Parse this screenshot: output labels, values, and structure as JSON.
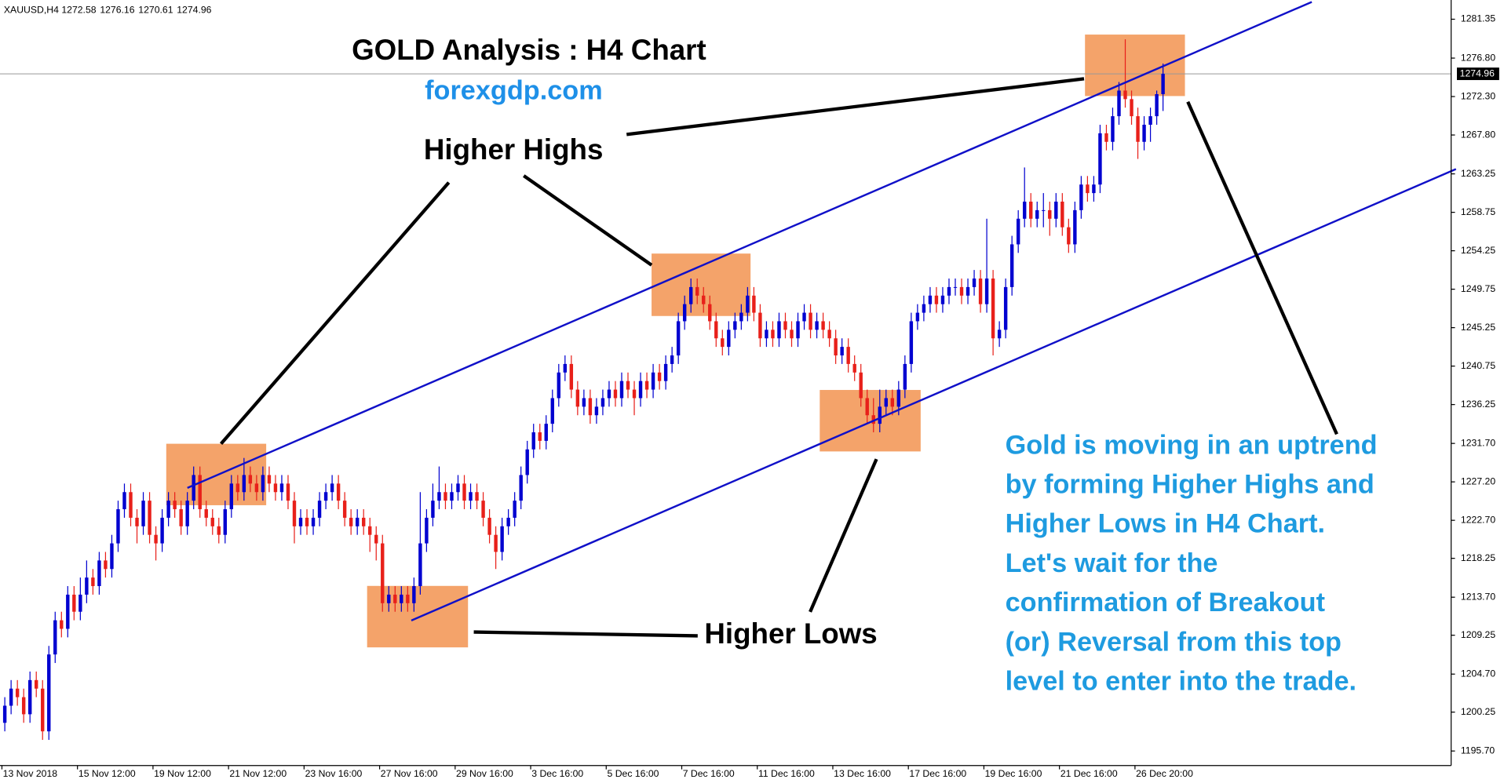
{
  "chart_data": {
    "type": "candlestick",
    "symbol": "XAUUSD,H4",
    "title": "GOLD Analysis : H4 Chart",
    "subtitle": "forexgdp.com",
    "annotations": [
      "Higher Highs",
      "Higher Lows"
    ],
    "note_lines": [
      "Gold is moving in an uptrend",
      "by forming Higher Highs and",
      "Higher Lows in H4 Chart.",
      "Let's wait for the",
      "confirmation of Breakout",
      "(or) Reversal from this top",
      "level to enter into the trade."
    ],
    "up_color": "#0000d0",
    "down_color": "#e8201a",
    "ylim": [
      1194.0,
      1283.6
    ],
    "yticks": [
      1281.35,
      {
        "value": 1276.8,
        "label": "1276.80"
      },
      {
        "value": 1272.3,
        "label": "1272.30"
      },
      {
        "value": 1267.8,
        "label": "1267.80"
      },
      1263.25,
      1258.75,
      1254.25,
      1249.75,
      1245.25,
      1240.75,
      1236.25,
      {
        "value": 1231.7,
        "label": "1231.70"
      },
      {
        "value": 1227.2,
        "label": "1227.20"
      },
      {
        "value": 1222.7,
        "label": "1222.70"
      },
      1218.25,
      {
        "value": 1213.7,
        "label": "1213.70"
      },
      1209.25,
      {
        "value": 1204.7,
        "label": "1204.70"
      },
      1200.25,
      {
        "value": 1195.7,
        "label": "1195.70"
      }
    ],
    "categories": [
      "13 Nov 2018",
      null,
      null,
      null,
      null,
      null,
      null,
      null,
      null,
      null,
      null,
      null,
      "15 Nov 12:00",
      null,
      null,
      null,
      null,
      null,
      null,
      null,
      null,
      null,
      null,
      null,
      "19 Nov 12:00",
      null,
      null,
      null,
      null,
      null,
      null,
      null,
      null,
      null,
      null,
      null,
      "21 Nov 12:00",
      null,
      null,
      null,
      null,
      null,
      null,
      null,
      null,
      null,
      null,
      null,
      "23 Nov 16:00",
      null,
      null,
      null,
      null,
      null,
      null,
      null,
      null,
      null,
      null,
      null,
      "27 Nov 16:00",
      null,
      null,
      null,
      null,
      null,
      null,
      null,
      null,
      null,
      null,
      null,
      "29 Nov 16:00",
      null,
      null,
      null,
      null,
      null,
      null,
      null,
      null,
      null,
      null,
      null,
      "3 Dec 16:00",
      null,
      null,
      null,
      null,
      null,
      null,
      null,
      null,
      null,
      null,
      null,
      "5 Dec 16:00",
      null,
      null,
      null,
      null,
      null,
      null,
      null,
      null,
      null,
      null,
      null,
      "7 Dec 16:00",
      null,
      null,
      null,
      null,
      null,
      null,
      null,
      null,
      null,
      null,
      null,
      "11 Dec 16:00",
      null,
      null,
      null,
      null,
      null,
      null,
      null,
      null,
      null,
      null,
      null,
      "13 Dec 16:00",
      null,
      null,
      null,
      null,
      null,
      null,
      null,
      null,
      null,
      null,
      null,
      "17 Dec 16:00",
      null,
      null,
      null,
      null,
      null,
      null,
      null,
      null,
      null,
      null,
      null,
      "19 Dec 16:00",
      null,
      null,
      null,
      null,
      null,
      null,
      null,
      null,
      null,
      null,
      null,
      "21 Dec 16:00",
      null,
      null,
      null,
      null,
      null,
      null,
      null,
      null,
      null,
      null,
      null,
      "26 Dec 20:00",
      null,
      null,
      null,
      null
    ],
    "ohlc": [
      [
        1199,
        1202,
        1198,
        1201
      ],
      [
        1201,
        1204,
        1200,
        1203
      ],
      [
        1203,
        1204,
        1201,
        1202
      ],
      [
        1202,
        1203,
        1199,
        1200
      ],
      [
        1200,
        1205,
        1199,
        1204
      ],
      [
        1204,
        1205,
        1202,
        1203
      ],
      [
        1203,
        1204,
        1197,
        1198
      ],
      [
        1198,
        1208,
        1197,
        1207
      ],
      [
        1207,
        1212,
        1206,
        1211
      ],
      [
        1211,
        1212,
        1209,
        1210
      ],
      [
        1210,
        1215,
        1209,
        1214
      ],
      [
        1214,
        1215,
        1211,
        1212
      ],
      [
        1212,
        1216,
        1211,
        1214
      ],
      [
        1214,
        1218,
        1213,
        1216
      ],
      [
        1216,
        1217,
        1214,
        1215
      ],
      [
        1215,
        1219,
        1214,
        1218
      ],
      [
        1218,
        1219,
        1216,
        1217
      ],
      [
        1217,
        1221,
        1216,
        1220
      ],
      [
        1220,
        1225,
        1219,
        1224
      ],
      [
        1224,
        1227,
        1223,
        1226
      ],
      [
        1226,
        1227,
        1222,
        1223
      ],
      [
        1223,
        1224,
        1220,
        1222
      ],
      [
        1222,
        1226,
        1221,
        1225
      ],
      [
        1225,
        1226,
        1220,
        1221
      ],
      [
        1221,
        1222,
        1218,
        1220
      ],
      [
        1220,
        1224,
        1219,
        1223
      ],
      [
        1223,
        1226,
        1222,
        1225
      ],
      [
        1225,
        1226,
        1223,
        1224
      ],
      [
        1224,
        1225,
        1221,
        1222
      ],
      [
        1222,
        1226,
        1221,
        1225
      ],
      [
        1225,
        1229,
        1224,
        1228
      ],
      [
        1228,
        1229,
        1223,
        1224
      ],
      [
        1224,
        1225,
        1222,
        1223
      ],
      [
        1223,
        1224,
        1221,
        1222
      ],
      [
        1222,
        1223,
        1220,
        1221
      ],
      [
        1221,
        1225,
        1220,
        1224
      ],
      [
        1224,
        1228,
        1223,
        1227
      ],
      [
        1227,
        1228,
        1225,
        1226
      ],
      [
        1226,
        1230,
        1225,
        1228
      ],
      [
        1228,
        1229,
        1226,
        1227
      ],
      [
        1227,
        1228,
        1225,
        1226
      ],
      [
        1226,
        1229,
        1225,
        1228
      ],
      [
        1228,
        1229,
        1226,
        1227
      ],
      [
        1227,
        1228,
        1225,
        1226
      ],
      [
        1226,
        1228,
        1225,
        1227
      ],
      [
        1227,
        1228,
        1224,
        1225
      ],
      [
        1225,
        1226,
        1220,
        1222
      ],
      [
        1222,
        1224,
        1221,
        1223
      ],
      [
        1223,
        1224,
        1221,
        1222
      ],
      [
        1222,
        1224,
        1221,
        1223
      ],
      [
        1223,
        1226,
        1222,
        1225
      ],
      [
        1225,
        1227,
        1224,
        1226
      ],
      [
        1226,
        1228,
        1225,
        1227
      ],
      [
        1227,
        1228,
        1224,
        1225
      ],
      [
        1225,
        1226,
        1222,
        1223
      ],
      [
        1223,
        1224,
        1221,
        1222
      ],
      [
        1222,
        1224,
        1221,
        1223
      ],
      [
        1223,
        1224,
        1221,
        1222
      ],
      [
        1222,
        1223,
        1219,
        1221
      ],
      [
        1221,
        1222,
        1218,
        1220
      ],
      [
        1220,
        1221,
        1212,
        1213
      ],
      [
        1213,
        1215,
        1212,
        1214
      ],
      [
        1214,
        1215,
        1212,
        1213
      ],
      [
        1213,
        1215,
        1212,
        1214
      ],
      [
        1214,
        1215,
        1212,
        1213
      ],
      [
        1213,
        1216,
        1212,
        1215
      ],
      [
        1215,
        1226,
        1214,
        1220
      ],
      [
        1220,
        1224,
        1219,
        1223
      ],
      [
        1223,
        1227,
        1222,
        1225
      ],
      [
        1225,
        1229,
        1224,
        1226
      ],
      [
        1226,
        1227,
        1224,
        1225
      ],
      [
        1225,
        1227,
        1224,
        1226
      ],
      [
        1226,
        1228,
        1225,
        1227
      ],
      [
        1227,
        1228,
        1224,
        1225
      ],
      [
        1225,
        1227,
        1224,
        1226
      ],
      [
        1226,
        1227,
        1224,
        1225
      ],
      [
        1225,
        1226,
        1222,
        1223
      ],
      [
        1223,
        1224,
        1220,
        1221
      ],
      [
        1221,
        1222,
        1217,
        1219
      ],
      [
        1219,
        1223,
        1218,
        1222
      ],
      [
        1222,
        1224,
        1221,
        1223
      ],
      [
        1223,
        1226,
        1222,
        1225
      ],
      [
        1225,
        1229,
        1224,
        1228
      ],
      [
        1228,
        1232,
        1227,
        1231
      ],
      [
        1231,
        1234,
        1230,
        1233
      ],
      [
        1233,
        1234,
        1231,
        1232
      ],
      [
        1232,
        1235,
        1231,
        1234
      ],
      [
        1234,
        1238,
        1233,
        1237
      ],
      [
        1237,
        1241,
        1236,
        1240
      ],
      [
        1240,
        1242,
        1239,
        1241
      ],
      [
        1241,
        1242,
        1237,
        1238
      ],
      [
        1238,
        1239,
        1235,
        1236
      ],
      [
        1236,
        1238,
        1235,
        1237
      ],
      [
        1237,
        1238,
        1234,
        1235
      ],
      [
        1235,
        1237,
        1234,
        1236
      ],
      [
        1236,
        1238,
        1235,
        1237
      ],
      [
        1237,
        1239,
        1236,
        1238
      ],
      [
        1238,
        1239,
        1236,
        1237
      ],
      [
        1237,
        1240,
        1236,
        1239
      ],
      [
        1239,
        1240,
        1237,
        1238
      ],
      [
        1238,
        1239,
        1235,
        1237
      ],
      [
        1237,
        1240,
        1236,
        1239
      ],
      [
        1239,
        1240,
        1237,
        1238
      ],
      [
        1238,
        1241,
        1237,
        1240
      ],
      [
        1240,
        1241,
        1238,
        1239
      ],
      [
        1239,
        1242,
        1238,
        1241
      ],
      [
        1241,
        1243,
        1240,
        1242
      ],
      [
        1242,
        1247,
        1241,
        1246
      ],
      [
        1246,
        1249,
        1245,
        1248
      ],
      [
        1248,
        1251,
        1247,
        1250
      ],
      [
        1250,
        1251,
        1248,
        1249
      ],
      [
        1249,
        1250,
        1247,
        1248
      ],
      [
        1248,
        1249,
        1245,
        1246
      ],
      [
        1246,
        1247,
        1243,
        1244
      ],
      [
        1244,
        1245,
        1242,
        1243
      ],
      [
        1243,
        1246,
        1242,
        1245
      ],
      [
        1245,
        1247,
        1244,
        1246
      ],
      [
        1246,
        1248,
        1245,
        1247
      ],
      [
        1247,
        1250,
        1246,
        1249
      ],
      [
        1249,
        1250,
        1246,
        1247
      ],
      [
        1247,
        1248,
        1243,
        1244
      ],
      [
        1244,
        1246,
        1243,
        1245
      ],
      [
        1245,
        1246,
        1243,
        1244
      ],
      [
        1244,
        1247,
        1243,
        1246
      ],
      [
        1246,
        1247,
        1244,
        1245
      ],
      [
        1245,
        1246,
        1243,
        1244
      ],
      [
        1244,
        1247,
        1243,
        1246
      ],
      [
        1246,
        1248,
        1245,
        1247
      ],
      [
        1247,
        1248,
        1244,
        1245
      ],
      [
        1245,
        1247,
        1244,
        1246
      ],
      [
        1246,
        1247,
        1244,
        1245
      ],
      [
        1245,
        1246,
        1243,
        1244
      ],
      [
        1244,
        1245,
        1241,
        1242
      ],
      [
        1242,
        1244,
        1241,
        1243
      ],
      [
        1243,
        1244,
        1240,
        1241
      ],
      [
        1241,
        1242,
        1239,
        1240
      ],
      [
        1240,
        1241,
        1236,
        1237
      ],
      [
        1237,
        1238,
        1234,
        1235
      ],
      [
        1235,
        1237,
        1233,
        1234
      ],
      [
        1234,
        1238,
        1233,
        1236
      ],
      [
        1236,
        1238,
        1235,
        1237
      ],
      [
        1237,
        1238,
        1235,
        1236
      ],
      [
        1236,
        1239,
        1235,
        1238
      ],
      [
        1238,
        1242,
        1237,
        1241
      ],
      [
        1241,
        1247,
        1240,
        1246
      ],
      [
        1246,
        1248,
        1245,
        1247
      ],
      [
        1247,
        1249,
        1246,
        1248
      ],
      [
        1248,
        1250,
        1247,
        1249
      ],
      [
        1249,
        1250,
        1247,
        1248
      ],
      [
        1248,
        1250,
        1247,
        1249
      ],
      [
        1249,
        1251,
        1248,
        1250
      ],
      [
        1250,
        1251,
        1249,
        1250
      ],
      [
        1250,
        1251,
        1248,
        1249
      ],
      [
        1249,
        1251,
        1248,
        1250
      ],
      [
        1250,
        1252,
        1249,
        1251
      ],
      [
        1251,
        1252,
        1247,
        1248
      ],
      [
        1248,
        1258,
        1247,
        1251
      ],
      [
        1251,
        1252,
        1242,
        1244
      ],
      [
        1244,
        1246,
        1243,
        1245
      ],
      [
        1245,
        1251,
        1244,
        1250
      ],
      [
        1250,
        1256,
        1249,
        1255
      ],
      [
        1255,
        1259,
        1254,
        1258
      ],
      [
        1258,
        1264,
        1257,
        1260
      ],
      [
        1260,
        1261,
        1257,
        1258
      ],
      [
        1258,
        1260,
        1257,
        1259
      ],
      [
        1259,
        1261,
        1257,
        1259
      ],
      [
        1259,
        1260,
        1256,
        1258
      ],
      [
        1258,
        1261,
        1257,
        1260
      ],
      [
        1260,
        1261,
        1256,
        1257
      ],
      [
        1257,
        1258,
        1254,
        1255
      ],
      [
        1255,
        1260,
        1254,
        1259
      ],
      [
        1259,
        1263,
        1258,
        1262
      ],
      [
        1262,
        1263,
        1260,
        1261
      ],
      [
        1261,
        1263,
        1260,
        1262
      ],
      [
        1262,
        1269,
        1261,
        1268
      ],
      [
        1268,
        1269,
        1266,
        1267
      ],
      [
        1267,
        1271,
        1266,
        1270
      ],
      [
        1270,
        1274,
        1269,
        1273
      ],
      [
        1273,
        1279,
        1271,
        1272
      ],
      [
        1272,
        1273,
        1269,
        1270
      ],
      [
        1270,
        1271,
        1265,
        1267
      ],
      [
        1267,
        1270,
        1266,
        1269
      ],
      [
        1269,
        1271,
        1267,
        1270
      ],
      [
        1270,
        1273,
        1269,
        1272.58
      ],
      [
        1272.58,
        1276.16,
        1270.61,
        1274.96
      ]
    ]
  }
}
